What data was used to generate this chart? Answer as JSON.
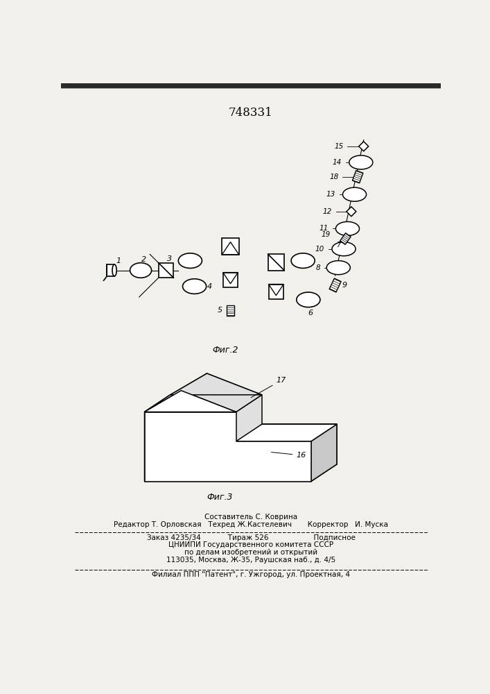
{
  "patent_number": "748331",
  "bg_color": "#f2f0eb",
  "fig2_label": "Фиг.2",
  "fig3_label": "Фиг.3",
  "footer_line1": "Составитель С. Коврина",
  "footer_line2": "Редактор Т. Орловская   Техред Ж.Кастелевич       Корректор   И. Муска",
  "footer_line3": "Заказ 4235/34            Тираж 526                    Подписное",
  "footer_line4": "ЦНИИПИ Государственного комитета СССР",
  "footer_line5": "по делам изобретений и открытий",
  "footer_line6": "113035, Москва, Ж-35, Раушская наб., д. 4/5",
  "footer_line7": "Филиал ППП \"Патент\", г. Ужгород, ул. Проектная, 4"
}
